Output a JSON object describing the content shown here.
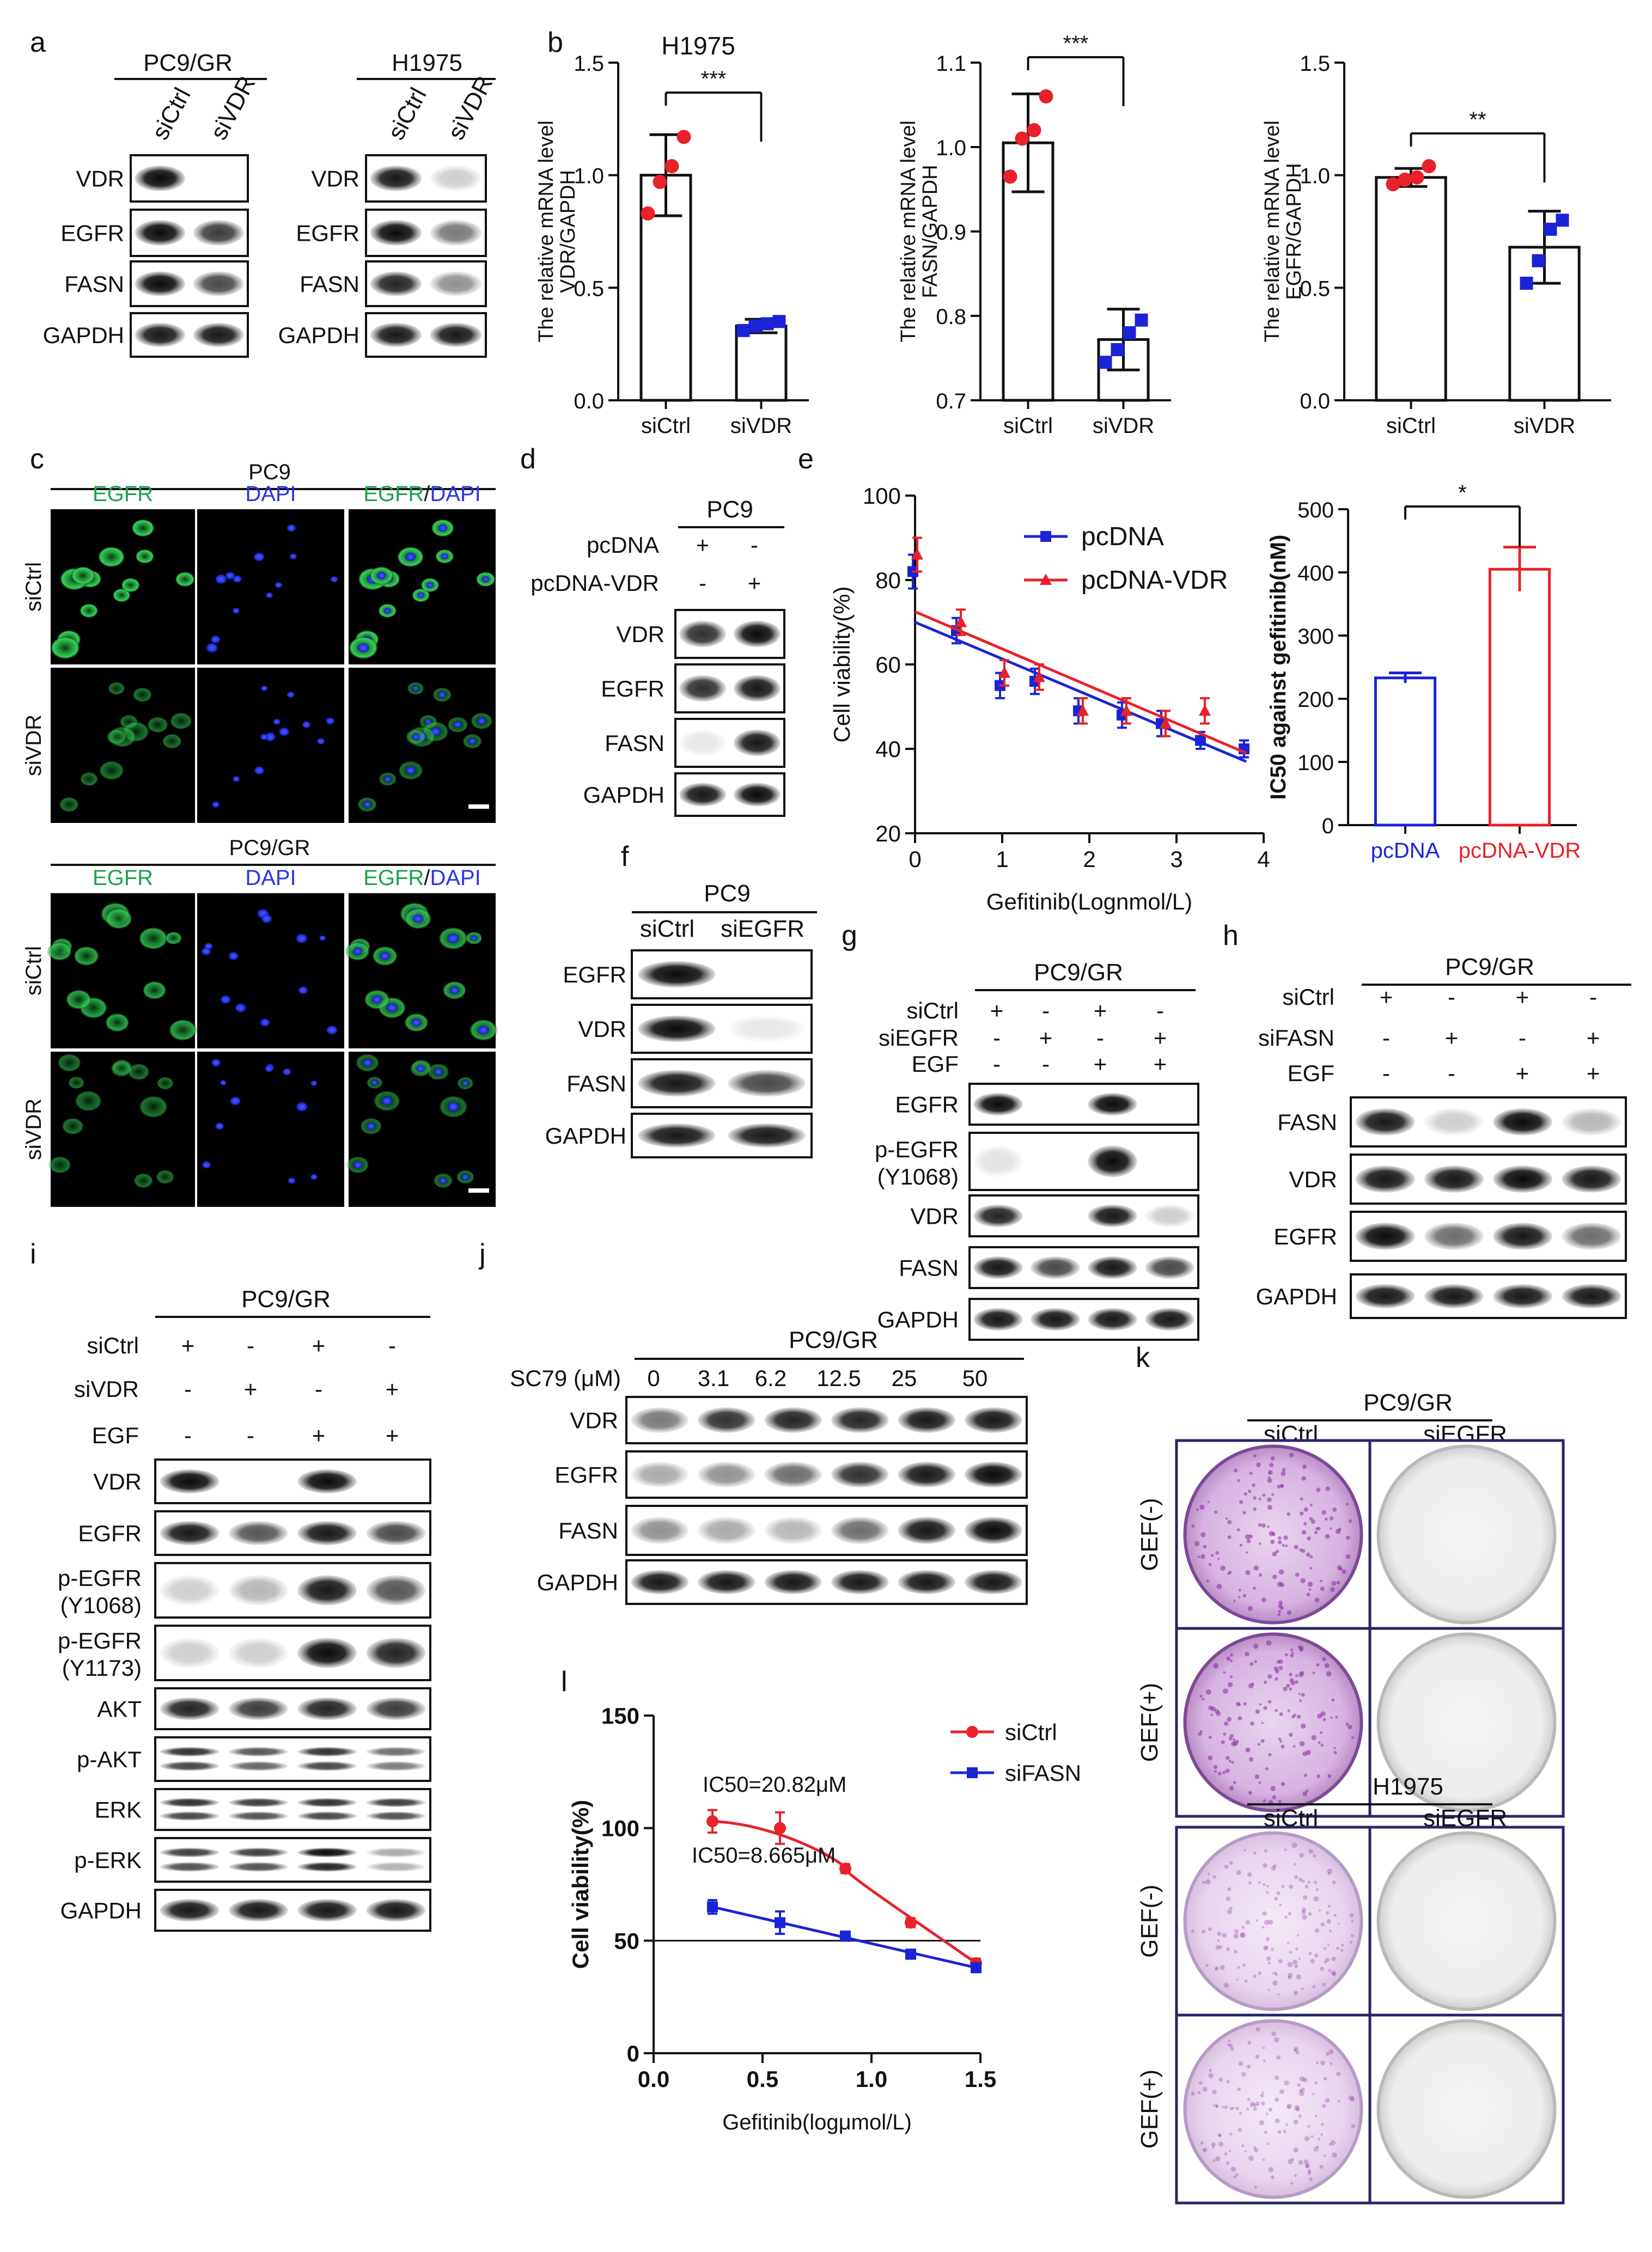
{
  "panel_letters": [
    "a",
    "b",
    "c",
    "d",
    "e",
    "f",
    "g",
    "h",
    "i",
    "j",
    "k",
    "l"
  ],
  "panel_a": {
    "groups": [
      {
        "title": "PC9/GR",
        "lanes": [
          "siCtrl",
          "siVDR"
        ],
        "rows": [
          "VDR",
          "EGFR",
          "FASN",
          "GAPDH"
        ]
      },
      {
        "title": "H1975",
        "lanes": [
          "siCtrl",
          "siVDR"
        ],
        "rows": [
          "VDR",
          "EGFR",
          "FASN",
          "GAPDH"
        ]
      }
    ]
  },
  "panel_c": {
    "blocks": [
      {
        "title": "PC9",
        "channels": [
          "EGFR",
          "DAPI",
          "EGFR/DAPI"
        ],
        "rows": [
          "siCtrl",
          "siVDR"
        ]
      },
      {
        "title": "PC9/GR",
        "channels": [
          "EGFR",
          "DAPI",
          "EGFR/DAPI"
        ],
        "rows": [
          "siCtrl",
          "siVDR"
        ]
      }
    ]
  },
  "panel_d": {
    "title": "PC9",
    "conditions": [
      {
        "name": "pcDNA",
        "signs": [
          "+",
          "-"
        ]
      },
      {
        "name": "pcDNA-VDR",
        "signs": [
          "-",
          "+"
        ]
      }
    ],
    "rows": [
      "VDR",
      "EGFR",
      "FASN",
      "GAPDH"
    ]
  },
  "panel_f": {
    "title": "PC9",
    "lanes": [
      "siCtrl",
      "siEGFR"
    ],
    "rows": [
      "EGFR",
      "VDR",
      "FASN",
      "GAPDH"
    ]
  },
  "panel_g": {
    "title": "PC9/GR",
    "conditions": [
      {
        "name": "siCtrl",
        "signs": [
          "+",
          "-",
          "+",
          "-"
        ]
      },
      {
        "name": "siEGFR",
        "signs": [
          "-",
          "+",
          "-",
          "+"
        ]
      },
      {
        "name": "EGF",
        "signs": [
          "-",
          "-",
          "+",
          "+"
        ]
      }
    ],
    "rows": [
      "EGFR",
      "p-EGFR",
      "(Y1068)",
      "VDR",
      "FASN",
      "GAPDH"
    ]
  },
  "panel_h": {
    "title": "PC9/GR",
    "conditions": [
      {
        "name": "siCtrl",
        "signs": [
          "+",
          "-",
          "+",
          "-"
        ]
      },
      {
        "name": "siFASN",
        "signs": [
          "-",
          "+",
          "-",
          "+"
        ]
      },
      {
        "name": "EGF",
        "signs": [
          "-",
          "-",
          "+",
          "+"
        ]
      }
    ],
    "rows": [
      "FASN",
      "VDR",
      "EGFR",
      "GAPDH"
    ]
  },
  "panel_i": {
    "title": "PC9/GR",
    "conditions": [
      {
        "name": "siCtrl",
        "signs": [
          "+",
          "-",
          "+",
          "-"
        ]
      },
      {
        "name": "siVDR",
        "signs": [
          "-",
          "+",
          "-",
          "+"
        ]
      },
      {
        "name": "EGF",
        "signs": [
          "-",
          "-",
          "+",
          "+"
        ]
      }
    ],
    "rows": [
      "VDR",
      "EGFR",
      "p-EGFR",
      "(Y1068)",
      "p-EGFR",
      "(Y1173)",
      "AKT",
      "p-AKT",
      "ERK",
      "p-ERK",
      "GAPDH"
    ]
  },
  "panel_j": {
    "title": "PC9/GR",
    "dose_label": "SC79 (μM)",
    "doses": [
      "0",
      "3.1",
      "6.2",
      "12.5",
      "25",
      "50"
    ],
    "rows": [
      "VDR",
      "EGFR",
      "FASN",
      "GAPDH"
    ]
  },
  "panel_k": {
    "blocks": [
      {
        "title": "PC9/GR",
        "columns": [
          "siCtrl",
          "siEGFR"
        ],
        "rows": [
          "GEF(-)",
          "GEF(+)"
        ]
      },
      {
        "title": "H1975",
        "columns": [
          "siCtrl",
          "siEGFR"
        ],
        "rows": [
          "GEF(-)",
          "GEF(+)"
        ]
      }
    ]
  },
  "colors": {
    "red": "#e8212a",
    "blue": "#1a24d6",
    "green": "#1aa34a",
    "dapi_blue": "#2a34ea",
    "purple": "#9a3aa8"
  },
  "chart_data": [
    {
      "type": "bar",
      "title": "H1975",
      "ylabel_lines": [
        "The relative mRNA level",
        "VDR/GAPDH"
      ],
      "categories": [
        "siCtrl",
        "siVDR"
      ],
      "values": [
        1.0,
        0.33
      ],
      "errors": [
        0.18,
        0.03
      ],
      "points": [
        [
          0.83,
          0.97,
          1.04,
          1.17
        ],
        [
          0.31,
          0.33,
          0.34,
          0.35
        ]
      ],
      "ylim": [
        0.0,
        1.5
      ],
      "yticks": [
        "0.0",
        "0.5",
        "1.0",
        "1.5"
      ],
      "significance": "***"
    },
    {
      "type": "bar",
      "title": "",
      "ylabel_lines": [
        "The relative mRNA level",
        "FASN/GAPDH"
      ],
      "categories": [
        "siCtrl",
        "siVDR"
      ],
      "values": [
        1.005,
        0.772
      ],
      "errors": [
        0.058,
        0.036
      ],
      "points": [
        [
          0.965,
          1.01,
          1.02,
          1.06
        ],
        [
          0.745,
          0.76,
          0.78,
          0.795
        ]
      ],
      "ylim": [
        0.7,
        1.1
      ],
      "yticks": [
        "0.7",
        "0.8",
        "0.9",
        "1.0",
        "1.1"
      ],
      "significance": "***"
    },
    {
      "type": "bar",
      "title": "",
      "ylabel_lines": [
        "The relative mRNA level",
        "EGFR/GAPDH"
      ],
      "categories": [
        "siCtrl",
        "siVDR"
      ],
      "values": [
        0.99,
        0.68
      ],
      "errors": [
        0.04,
        0.16
      ],
      "points": [
        [
          0.96,
          0.98,
          0.99,
          1.04
        ],
        [
          0.52,
          0.62,
          0.76,
          0.8
        ]
      ],
      "ylim": [
        0.0,
        1.5
      ],
      "yticks": [
        "0.0",
        "0.5",
        "1.0",
        "1.5"
      ],
      "significance": "**"
    },
    {
      "type": "line",
      "title": "",
      "xlabel": "Gefitinib(Lognmol/L)",
      "ylabel": "Cell viability(%)",
      "xlim": [
        0,
        4
      ],
      "ylim": [
        20,
        100
      ],
      "xticks": [
        "0",
        "1",
        "2",
        "3",
        "4"
      ],
      "yticks": [
        "20",
        "40",
        "60",
        "80",
        "100"
      ],
      "series": [
        {
          "name": "pcDNA",
          "color": "#1a24d6",
          "x": [
            0,
            0.5,
            1,
            1.4,
            1.9,
            2.4,
            2.85,
            3.3,
            3.8
          ],
          "y": [
            82,
            68,
            55,
            56,
            49,
            48,
            46,
            42,
            40
          ],
          "err": [
            4,
            3,
            3,
            3,
            3,
            3,
            3,
            2,
            2
          ],
          "fit": [
            [
              0,
              70
            ],
            [
              3.8,
              37
            ]
          ]
        },
        {
          "name": "pcDNA-VDR",
          "color": "#e8212a",
          "x": [
            0,
            0.5,
            1,
            1.4,
            1.9,
            2.4,
            2.85,
            3.3
          ],
          "y": [
            86,
            70,
            58,
            57,
            49,
            49,
            46,
            49
          ],
          "err": [
            4,
            3,
            3,
            3,
            3,
            3,
            3,
            3
          ],
          "fit": [
            [
              0,
              72.5
            ],
            [
              3.8,
              39
            ]
          ]
        }
      ]
    },
    {
      "type": "bar",
      "title": "",
      "ylabel": "IC50 against gefitinib(nM)",
      "categories": [
        "pcDNA",
        "pcDNA-VDR"
      ],
      "category_colors": [
        "#1a24d6",
        "#e8212a"
      ],
      "values": [
        233,
        405
      ],
      "errors": [
        8,
        35
      ],
      "ylim": [
        0,
        500
      ],
      "yticks": [
        "0",
        "100",
        "200",
        "300",
        "400",
        "500"
      ],
      "significance": "*"
    },
    {
      "type": "line",
      "title": "",
      "xlabel": "Gefitinib(logμmol/L)",
      "ylabel": "Cell viability(%)",
      "xlim": [
        0.0,
        1.5
      ],
      "ylim": [
        0,
        150
      ],
      "xticks": [
        "0.0",
        "0.5",
        "1.0",
        "1.5"
      ],
      "yticks": [
        "0",
        "50",
        "100",
        "150"
      ],
      "reference_y": 50,
      "series": [
        {
          "name": "siCtrl",
          "color": "#e8212a",
          "x": [
            0.27,
            0.58,
            0.88,
            1.18,
            1.48
          ],
          "y": [
            103,
            100,
            82,
            58,
            40
          ],
          "err": [
            5,
            7,
            2,
            2,
            2
          ],
          "annotation": "IC50=20.82μM"
        },
        {
          "name": "siFASN",
          "color": "#1a24d6",
          "x": [
            0.27,
            0.58,
            0.88,
            1.18,
            1.48
          ],
          "y": [
            65,
            58,
            52,
            44,
            38
          ],
          "err": [
            3,
            5,
            2,
            2,
            2
          ],
          "annotation": "IC50=8.665μM"
        }
      ]
    }
  ]
}
